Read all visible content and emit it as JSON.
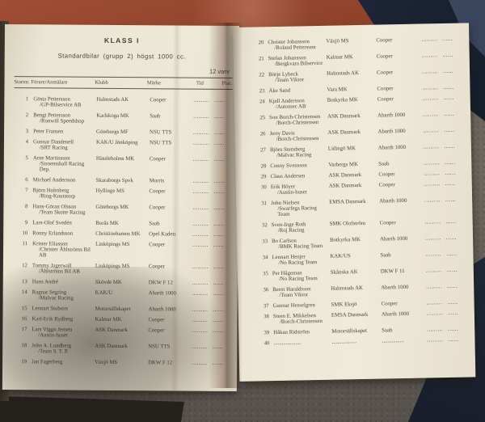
{
  "palette": {
    "paper": "#ece6d4",
    "ink": "#4d463c",
    "cloth_red": "#8d4129",
    "fabric_navy": "#222b3d",
    "blanket_gray": "#6f6860"
  },
  "booklet": {
    "left_page": {
      "title": "KLASS I",
      "subtitle": "Standardbilar (grupp 2) högst 1000 cc.",
      "laps_note": "12 varv",
      "columns": {
        "start_driver": "Startnr.  Förare/Anmälare",
        "club": "Klubb",
        "make": "Märke",
        "time": "Tid",
        "place": "Plac."
      },
      "entries": [
        {
          "no": "1",
          "driver": "Gösta Pettersson",
          "team": "/GP-Bilservice AB",
          "club": "Halmstads AK",
          "make": "Cooper"
        },
        {
          "no": "2",
          "driver": "Bengt Pettersson",
          "team": "/Ronwill Speedshop",
          "club": "Karlskoga MK",
          "make": "Saab"
        },
        {
          "no": "3",
          "driver": "Peter Fransen",
          "team": "",
          "club": "Göteborgs MF",
          "make": "NSU TTS"
        },
        {
          "no": "4",
          "driver": "Gunnar Dandenell",
          "team": "/SRT Racing",
          "club": "KAK/U Jönköping",
          "make": "NSU TTS"
        },
        {
          "no": "5",
          "driver": "Arne Martinsson",
          "team": "/Stroemshall Racing Dep.",
          "club": "Hässleholms MK",
          "make": "Cooper"
        },
        {
          "no": "6",
          "driver": "Michael Andersson",
          "team": "",
          "club": "Skaraborgs Spvk",
          "make": "Morris"
        },
        {
          "no": "7",
          "driver": "Björn Holmberg",
          "team": "/Ring-Knutstorp",
          "club": "Hyllinge MS",
          "make": "Cooper"
        },
        {
          "no": "8",
          "driver": "Hans-Göran Olsson",
          "team": "/Team Skotte Racing",
          "club": "Göteborgs MK",
          "make": "Cooper"
        },
        {
          "no": "9",
          "driver": "Lars-Olof Svedén",
          "team": "",
          "club": "Borås MK",
          "make": "Saab"
        },
        {
          "no": "10",
          "driver": "Ronny Erlandsson",
          "team": "",
          "club": "Christinehamns MK",
          "make": "Opel Kadett"
        },
        {
          "no": "11",
          "driver": "Krister Eliasson",
          "team": "/Christer Åhlströms Bil AB",
          "club": "Linköpings MS",
          "make": "Cooper"
        },
        {
          "no": "12",
          "driver": "Tommy Jagerwall",
          "team": "/Åhlströms Bil AB",
          "club": "Linköpings MS",
          "make": "Cooper"
        },
        {
          "no": "13",
          "driver": "Hans André",
          "team": "",
          "club": "Skövde MK",
          "make": "DKW F 12"
        },
        {
          "no": "14",
          "driver": "Ragnar Segring",
          "team": "/Malvac Racing",
          "club": "KAK/U",
          "make": "Abarth 1000"
        },
        {
          "no": "15",
          "driver": "Lennart Stuborn",
          "team": "",
          "club": "Motorsällskapet",
          "make": "Abarth 1000"
        },
        {
          "no": "16",
          "driver": "Karl-Erik Rydberg",
          "team": "",
          "club": "Kalmar MK",
          "make": "Cooper"
        },
        {
          "no": "17",
          "driver": "Lars Viggo Jensen",
          "team": "/Austin-huset",
          "club": "ASK Danmark",
          "make": "Cooper"
        },
        {
          "no": "18",
          "driver": "John A. Lundberg",
          "team": "/Team S. T. P.",
          "club": "ASK Danmark",
          "make": "NSU TTS"
        },
        {
          "no": "19",
          "driver": "Jan Fagerberg",
          "team": "",
          "club": "Växjö MS",
          "make": "DKW F 12"
        }
      ]
    },
    "right_page": {
      "entries": [
        {
          "no": "20",
          "driver": "Christer Johansson",
          "team": "/Roland Pettersson",
          "club": "Växjö MS",
          "make": "Cooper"
        },
        {
          "no": "21",
          "driver": "Stefan Johansson",
          "team": "/Bergkvara Bilservice",
          "club": "Kalmar MK",
          "make": "Cooper"
        },
        {
          "no": "22",
          "driver": "Börje Lybeck",
          "team": "/Team Viktor",
          "club": "Halmstads AK",
          "make": "Cooper"
        },
        {
          "no": "23",
          "driver": "Åke Sand",
          "team": "",
          "club": "Vara MK",
          "make": "Cooper"
        },
        {
          "no": "24",
          "driver": "Kjell Andersson",
          "team": "/Automec AB",
          "club": "Botkyrka MK",
          "make": "Cooper"
        },
        {
          "no": "25",
          "driver": "Son Borch-Christensen",
          "team": "/Borch-Christensen",
          "club": "ASK Danmark",
          "make": "Abarth 1000"
        },
        {
          "no": "26",
          "driver": "Jerry Davis",
          "team": "/Borch-Christensen",
          "club": "ASK Danmark",
          "make": "Abarth 1000"
        },
        {
          "no": "27",
          "driver": "Björn Sternberg",
          "team": "/Malvac Racing",
          "club": "Lidingö MK",
          "make": "Abarth 1000"
        },
        {
          "no": "28",
          "driver": "Conny Svensson",
          "team": "",
          "club": "Varbergs MK",
          "make": "Saab"
        },
        {
          "no": "29",
          "driver": "Claus Andersen",
          "team": "",
          "club": "ASK Danmark",
          "make": "Cooper"
        },
        {
          "no": "30",
          "driver": "Erik Höyer",
          "team": "/Austin-huset",
          "club": "ASK Danmark",
          "make": "Cooper"
        },
        {
          "no": "31",
          "driver": "John Nielsen",
          "team": "/Swarfega Racing Team",
          "club": "EMSA Danmark",
          "make": "Abarth 1000"
        },
        {
          "no": "32",
          "driver": "Sven-Inge Roth",
          "team": "/Roj Racing",
          "club": "SMK Olofström",
          "make": "Cooper"
        },
        {
          "no": "33",
          "driver": "Bo Carlson",
          "team": "/BMK Racing Team",
          "club": "Botkyrka MK",
          "make": "Abarth 1000"
        },
        {
          "no": "34",
          "driver": "Lennart Henjer",
          "team": "/No Racing Team",
          "club": "KAK/US",
          "make": "Saab"
        },
        {
          "no": "35",
          "driver": "Per Hågeman",
          "team": "/No Racing Team",
          "club": "Skånska AK",
          "make": "DKW F 11"
        },
        {
          "no": "36",
          "driver": "Bernt Haraldsson",
          "team": "/Team Viktor",
          "club": "Halmstads AK",
          "make": "Abarth 1000"
        },
        {
          "no": "37",
          "driver": "Gunnar Hesselgren",
          "team": "",
          "club": "SMK Eksjö",
          "make": "Cooper"
        },
        {
          "no": "38",
          "driver": "Steen E. Mikkelsen",
          "team": "/Borch-Christensen",
          "club": "EMSA Danmark",
          "make": "Abarth 1000"
        },
        {
          "no": "39",
          "driver": "Håkan Ridström",
          "team": "",
          "club": "Motorsällskapet",
          "make": "Saab"
        },
        {
          "no": "40",
          "driver": "....................",
          "team": "",
          "club": "..................",
          "make": "................"
        }
      ]
    },
    "leaders": {
      "time": ".........",
      "place": "......"
    }
  }
}
